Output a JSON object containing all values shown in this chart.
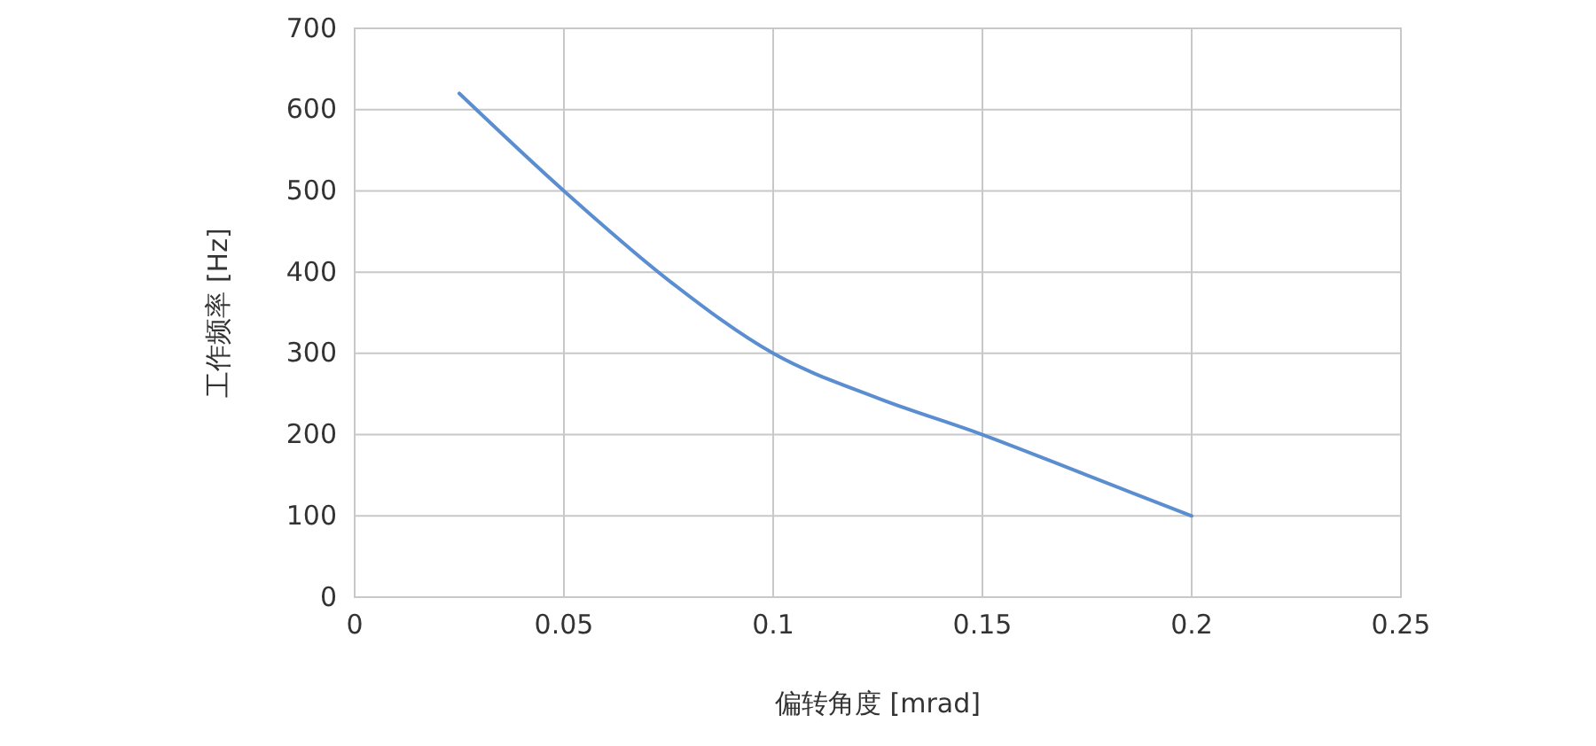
{
  "chart_data": {
    "type": "line",
    "xlabel": "偏转角度 [mrad]",
    "ylabel": "工作频率 [Hz]",
    "x": [
      0.025,
      0.05,
      0.075,
      0.1,
      0.125,
      0.15,
      0.175,
      0.2
    ],
    "series": [
      {
        "color": "#5b8ed0",
        "values": [
          620,
          500,
          390,
          300,
          245,
          200,
          150,
          100
        ]
      }
    ],
    "xlim": [
      0,
      0.25
    ],
    "xticks": [
      0,
      0.05,
      0.1,
      0.15,
      0.2,
      0.25
    ],
    "ylim": [
      0,
      700
    ],
    "yticks": [
      0,
      100,
      200,
      300,
      400,
      500,
      600,
      700
    ],
    "grid": true,
    "marker": "none",
    "line_style": "solid"
  }
}
